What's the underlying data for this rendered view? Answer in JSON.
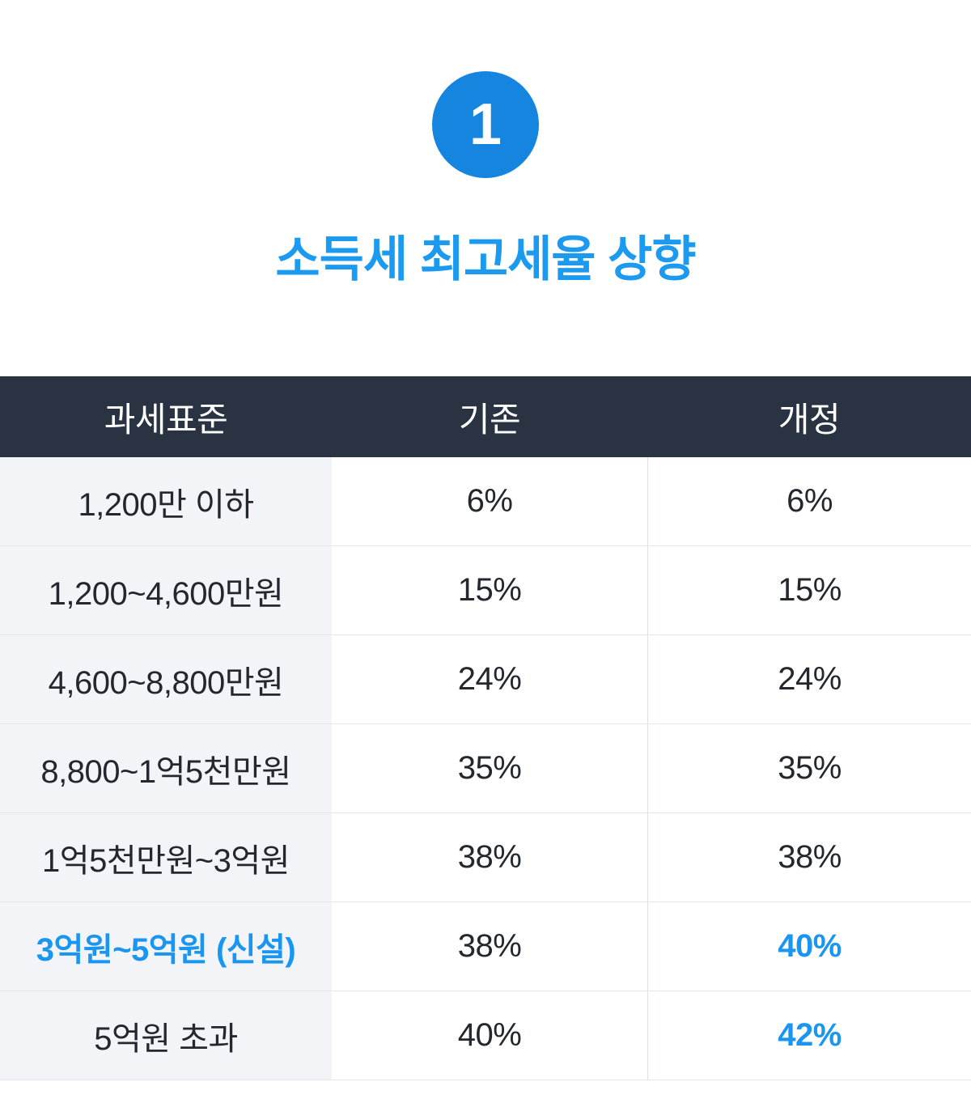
{
  "badge": {
    "number": "1"
  },
  "title": "소득세 최고세율 상향",
  "colors": {
    "accent_blue": "#1b96f0",
    "badge_blue": "#1585e0",
    "title_blue": "#1b9af0",
    "header_bg": "#2a3342",
    "first_column_bg": "#f2f4f8"
  },
  "table": {
    "headers": [
      "과세표준",
      "기존",
      "개정"
    ],
    "rows": [
      {
        "base": "1,200만 이하",
        "existing": "6%",
        "revised": "6%"
      },
      {
        "base": "1,200~4,600만원",
        "existing": "15%",
        "revised": "15%"
      },
      {
        "base": "4,600~8,800만원",
        "existing": "24%",
        "revised": "24%"
      },
      {
        "base": "8,800~1억5천만원",
        "existing": "35%",
        "revised": "35%"
      },
      {
        "base": "1억5천만원~3억원",
        "existing": "38%",
        "revised": "38%"
      },
      {
        "base": "3억원~5억원 (신설)",
        "existing": "38%",
        "revised": "40%"
      },
      {
        "base": "5억원 초과",
        "existing": "40%",
        "revised": "42%"
      }
    ]
  },
  "chart_data": {
    "type": "table",
    "title": "소득세 최고세율 상향",
    "columns": [
      "과세표준",
      "기존",
      "개정"
    ],
    "rows": [
      [
        "1,200만 이하",
        "6%",
        "6%"
      ],
      [
        "1,200~4,600만원",
        "15%",
        "15%"
      ],
      [
        "4,600~8,800만원",
        "24%",
        "24%"
      ],
      [
        "8,800~1억5천만원",
        "35%",
        "35%"
      ],
      [
        "1억5천만원~3억원",
        "38%",
        "38%"
      ],
      [
        "3억원~5억원 (신설)",
        "38%",
        "40%"
      ],
      [
        "5억원 초과",
        "40%",
        "42%"
      ]
    ],
    "highlighted_cells": [
      {
        "row": 5,
        "column": "과세표준",
        "style": "blue-bold"
      },
      {
        "row": 5,
        "column": "개정",
        "style": "blue-bold"
      },
      {
        "row": 6,
        "column": "개정",
        "style": "blue-bold"
      }
    ]
  }
}
